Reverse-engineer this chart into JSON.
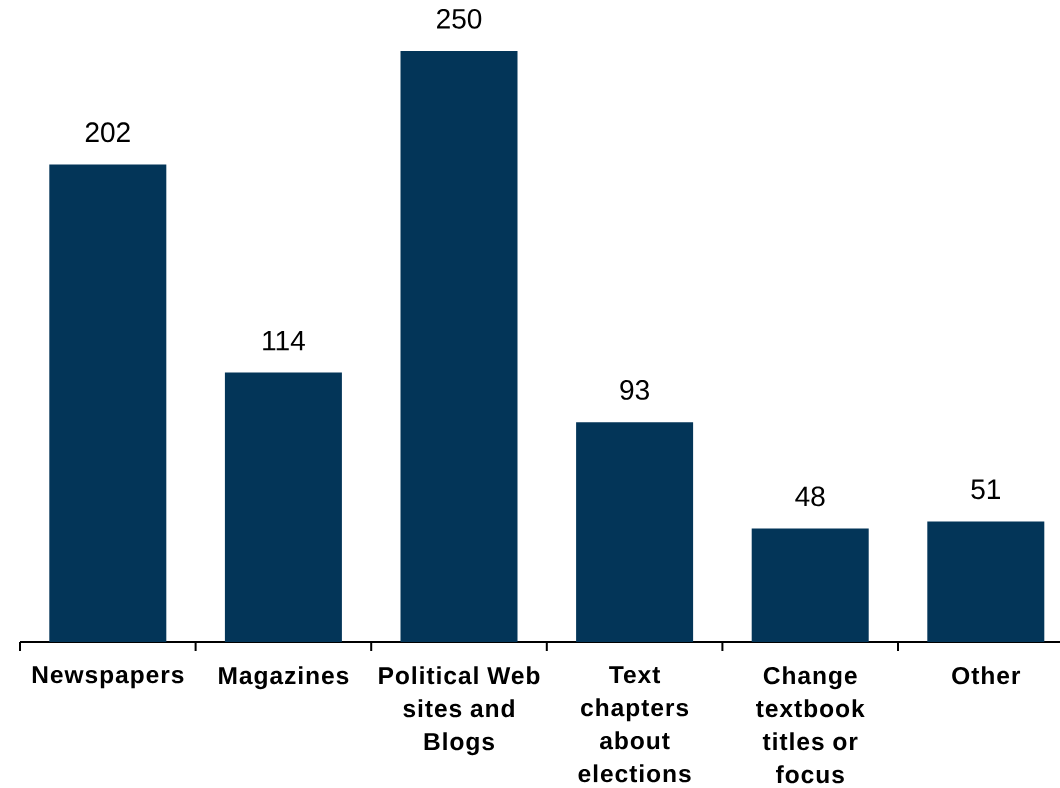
{
  "chart_data": {
    "type": "bar",
    "categories": [
      "Newspapers",
      "Magazines",
      "Political Web sites and Blogs",
      "Text chapters about elections",
      "Change textbook titles or focus",
      "Other"
    ],
    "values": [
      202,
      114,
      250,
      93,
      48,
      51
    ],
    "color": "#033558",
    "data_labels": true
  }
}
